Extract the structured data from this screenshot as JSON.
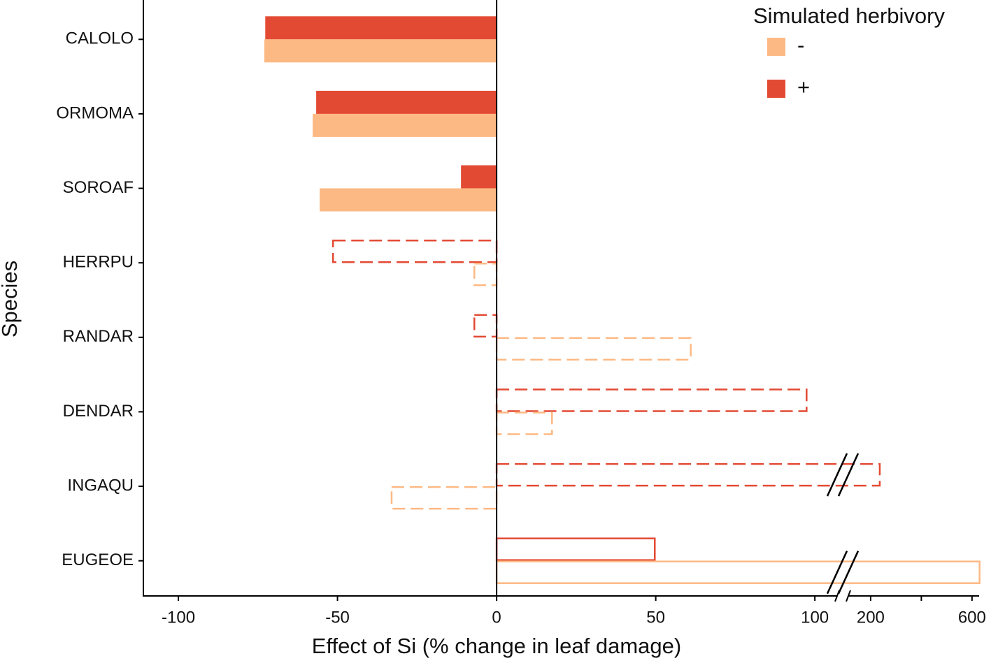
{
  "chart_data": {
    "type": "broken_hbar",
    "xlabel": "Effect of Si (% change in leaf damage)",
    "ylabel": "Species",
    "categories": [
      "CALOLO",
      "ORMOMA",
      "SOROAF",
      "HERRPU",
      "RANDAR",
      "DENDAR",
      "INGAQU",
      "EUGEOE"
    ],
    "bar_style": [
      "solid",
      "solid",
      "solid",
      "dashed",
      "dashed",
      "dashed",
      "dashed",
      "outline"
    ],
    "series": [
      {
        "name": "-",
        "color": "#fdb984",
        "values": [
          -73,
          -57.8,
          -55.6,
          -7,
          61,
          17.4,
          -33,
          630
        ]
      },
      {
        "name": "+",
        "color": "#e34a33",
        "values": [
          -72.7,
          -56.7,
          -11.2,
          -51.4,
          -7,
          97.4,
          236,
          49.7
        ]
      }
    ],
    "xlim": [
      -111,
      107
    ],
    "xticks": [
      -100,
      -50,
      0,
      50,
      100
    ],
    "x2lim": [
      112,
      628
    ],
    "x2ticks": [
      200,
      600
    ],
    "x2minor_ticks": [
      400
    ],
    "legend_title": "Simulated herbivory",
    "legend": "top-right"
  }
}
